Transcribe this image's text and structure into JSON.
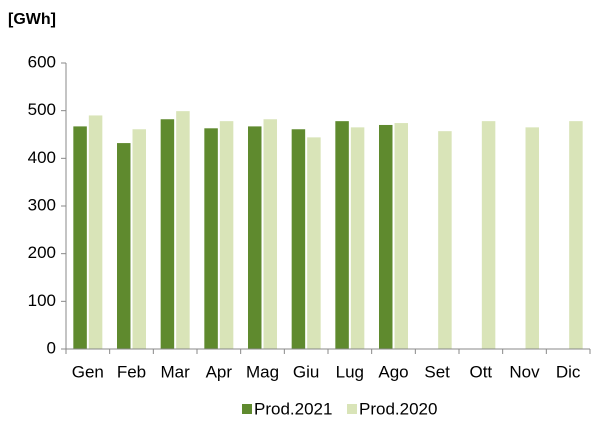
{
  "chart_data": {
    "type": "bar",
    "y_label": "[GWh]",
    "categories": [
      "Gen",
      "Feb",
      "Mar",
      "Apr",
      "Mag",
      "Giu",
      "Lug",
      "Ago",
      "Set",
      "Ott",
      "Nov",
      "Dic"
    ],
    "series": [
      {
        "name": "Prod.2021",
        "color": "#5f8a2e",
        "values": [
          467,
          432,
          482,
          463,
          467,
          461,
          478,
          470,
          null,
          null,
          null,
          null
        ]
      },
      {
        "name": "Prod.2020",
        "color": "#d9e4b8",
        "values": [
          490,
          461,
          499,
          478,
          482,
          444,
          465,
          474,
          457,
          478,
          465,
          478
        ]
      }
    ],
    "ylim": [
      0,
      600
    ],
    "yticks": [
      0,
      100,
      200,
      300,
      400,
      500,
      600
    ],
    "grid": false,
    "legend": "bottom"
  }
}
